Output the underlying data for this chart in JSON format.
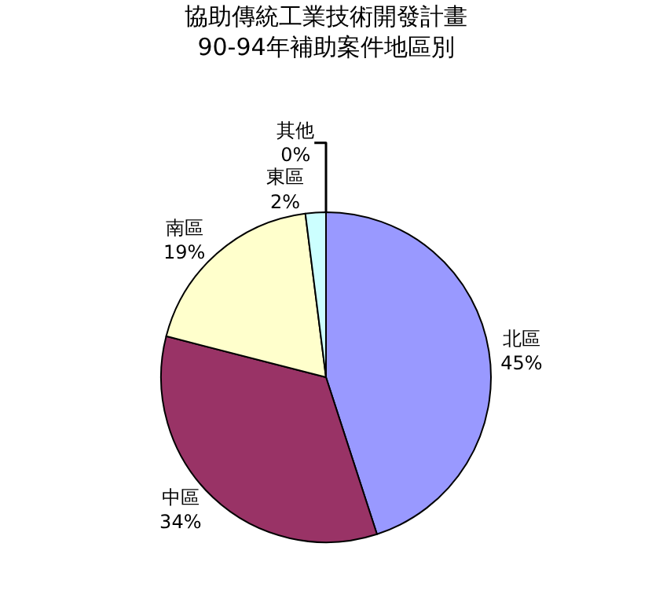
{
  "chart_data": {
    "type": "pie",
    "title": "協助傳統工業技術開發計畫\n90-94年補助案件地區別",
    "categories": [
      "北區",
      "中區",
      "南區",
      "東區",
      "其他"
    ],
    "values": [
      45,
      34,
      19,
      2,
      0
    ],
    "value_labels": [
      "45%",
      "34%",
      "19%",
      "2%",
      "0%"
    ],
    "colors": [
      "#9999ff",
      "#993366",
      "#ffffcc",
      "#ccffff",
      "#ffffff"
    ],
    "legend": false
  }
}
